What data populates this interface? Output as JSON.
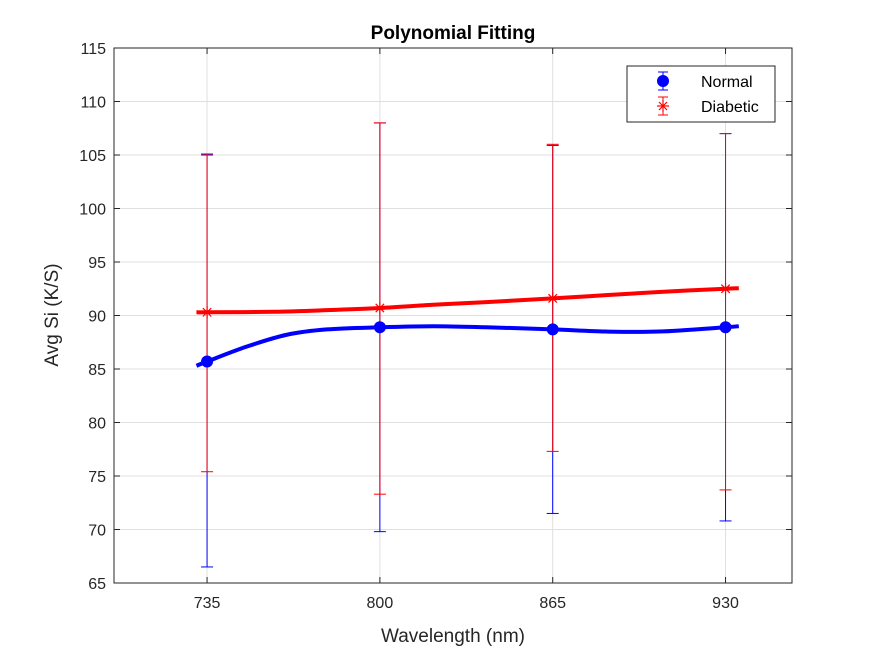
{
  "chart_data": {
    "type": "line",
    "title": "Polynomial Fitting",
    "xlabel": "Wavelength (nm)",
    "ylabel": "Avg Si (K/S)",
    "x": [
      735,
      800,
      865,
      930
    ],
    "xticks": [
      "735",
      "800",
      "865",
      "930"
    ],
    "xlim": [
      700,
      955
    ],
    "ylim": [
      65,
      115
    ],
    "yticks": [
      "65",
      "70",
      "75",
      "80",
      "85",
      "90",
      "95",
      "100",
      "105",
      "110",
      "115"
    ],
    "grid": true,
    "legend_position": "top-right",
    "series": [
      {
        "name": "Normal",
        "color": "#0000ff",
        "marker": "circle",
        "values": [
          85.7,
          88.9,
          88.7,
          88.9
        ],
        "err_low": [
          66.5,
          69.8,
          71.5,
          70.8
        ],
        "err_high": [
          105.0,
          108.0,
          105.9,
          107.0
        ],
        "fit": [
          [
            731,
            85.3
          ],
          [
            735,
            85.7
          ],
          [
            750,
            87.1
          ],
          [
            765,
            88.2
          ],
          [
            780,
            88.7
          ],
          [
            800,
            88.9
          ],
          [
            820,
            89.0
          ],
          [
            840,
            88.9
          ],
          [
            865,
            88.7
          ],
          [
            885,
            88.5
          ],
          [
            905,
            88.5
          ],
          [
            930,
            88.9
          ],
          [
            935,
            89.0
          ]
        ]
      },
      {
        "name": "Diabetic",
        "color": "#ff0000",
        "marker": "asterisk",
        "values": [
          90.3,
          90.7,
          91.6,
          92.5
        ],
        "err_low": [
          75.4,
          73.3,
          77.3,
          73.7
        ],
        "err_high": [
          105.1,
          108.0,
          106.0,
          107.0
        ],
        "fit": [
          [
            731,
            90.3
          ],
          [
            735,
            90.3
          ],
          [
            760,
            90.35
          ],
          [
            780,
            90.5
          ],
          [
            800,
            90.7
          ],
          [
            820,
            91.0
          ],
          [
            840,
            91.25
          ],
          [
            865,
            91.6
          ],
          [
            885,
            91.9
          ],
          [
            905,
            92.2
          ],
          [
            930,
            92.5
          ],
          [
            935,
            92.55
          ]
        ]
      }
    ]
  }
}
